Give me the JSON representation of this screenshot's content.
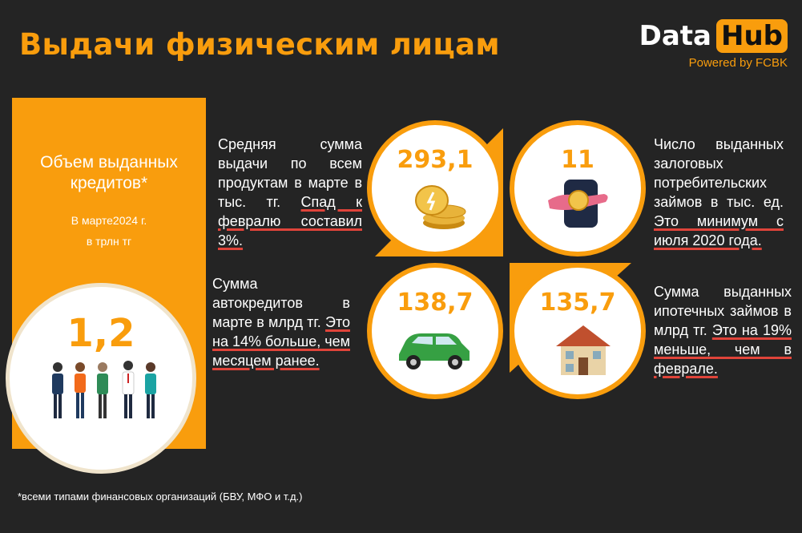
{
  "title": "Выдачи физическим лицам",
  "logo": {
    "word1": "Data",
    "word2": "Hub",
    "tagline": "Powered by FCBK"
  },
  "left_panel": {
    "heading": "Объем выданных кредитов*",
    "period": "В  марте2024 г.",
    "unit": "в трлн тг",
    "value": "1,2"
  },
  "stats": [
    {
      "value": "293,1",
      "icon": "coins-icon",
      "text": "Средняя сумма выдачи по всем продуктам в марте в тыс. тг.",
      "highlight": "Спад к февралю составил 3%."
    },
    {
      "value": "11",
      "icon": "hand-coin-icon",
      "text": "Число выданных залоговых потребительских займов в тыс. ед.",
      "highlight": "Это минимум с июля 2020 года."
    },
    {
      "value": "138,7",
      "icon": "car-icon",
      "text": "Сумма автокредитов в марте в млрд тг.",
      "highlight": "Это на 14% больше, чем месяцем ранее."
    },
    {
      "value": "135,7",
      "icon": "house-icon",
      "text": "Сумма выданных ипотечных займов в млрд тг.",
      "highlight": "Это на 19% меньше, чем в феврале."
    }
  ],
  "footnote": "*всеми типами финансовых организаций (БВУ, МФО и т.д.)",
  "colors": {
    "accent": "#f99d0d",
    "background": "#242424",
    "underline": "#e0443a"
  }
}
